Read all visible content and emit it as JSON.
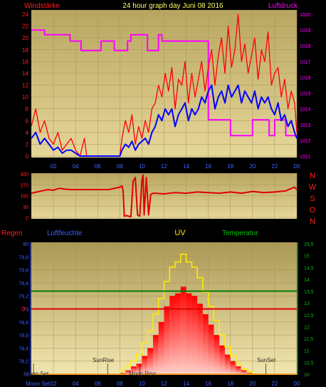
{
  "header": {
    "left_label": "Windstärke",
    "title": "24 hour graph day   Juni 08 2016",
    "right_label": "Luftdruck"
  },
  "colors": {
    "outer_bg": "#000000",
    "panel_bg": "#c8b46e",
    "grid": "#a89458",
    "wind_gust": "#ff0000",
    "wind_avg": "#0000ff",
    "pressure": "#ff00ff",
    "direction": "#e00000",
    "rain": "#e00000",
    "humidity": "#0000cc",
    "uv": "#ffee00",
    "temperature": "#007a00",
    "yellow_text": "#ffff66",
    "green_axis": "#00c000",
    "blue_axis": "#4060ff"
  },
  "bottom_header": {
    "rain_label": "Regen",
    "humidity_label": "Luftfeuchte",
    "uv_label": "UV",
    "temp_label": "Temperatur"
  },
  "compass_labels": [
    "N",
    "W",
    "S",
    "O",
    "N"
  ],
  "annotations": {
    "moon_set": "Moon Set",
    "sun_rise": "SunRise",
    "moon_rise": "Moon Rise",
    "sun_set": "SunSet",
    "moon_set_axis": "Moon Set"
  },
  "chart_data": [
    {
      "type": "line",
      "name": "wind-pressure",
      "x_ticks": [
        "02",
        "04",
        "06",
        "08",
        "10",
        "12",
        "14",
        "16",
        "18",
        "20",
        "22",
        "00"
      ],
      "x_range": [
        0,
        24
      ],
      "ylim_left": [
        0,
        24
      ],
      "yticks_left": [
        0,
        2,
        4,
        6,
        8,
        10,
        12,
        14,
        16,
        18,
        20,
        22,
        24
      ],
      "ylim_right": [
        1011,
        1020
      ],
      "yticks_right": [
        1011,
        1012,
        1013,
        1014,
        1015,
        1016,
        1017,
        1018,
        1019,
        1020
      ],
      "gust_x": [
        0,
        0.4,
        0.8,
        1.2,
        1.6,
        2.0,
        2.4,
        2.8,
        3.2,
        3.6,
        4.0,
        4.4,
        4.8,
        5.0,
        5.5,
        6.0,
        7.0,
        8.0,
        8.2,
        8.5,
        8.8,
        9.1,
        9.4,
        9.7,
        10.0,
        10.3,
        10.6,
        10.9,
        11.2,
        11.5,
        11.8,
        12.1,
        12.4,
        12.7,
        13.0,
        13.3,
        13.6,
        13.9,
        14.2,
        14.5,
        14.8,
        15.1,
        15.4,
        15.7,
        16.0,
        16.3,
        16.6,
        16.9,
        17.2,
        17.5,
        17.8,
        18.1,
        18.4,
        18.7,
        19.0,
        19.3,
        19.6,
        19.9,
        20.2,
        20.5,
        20.8,
        21.1,
        21.4,
        21.7,
        22.0,
        22.3,
        22.6,
        22.9,
        23.2,
        23.5,
        23.8,
        24.0
      ],
      "gust_y": [
        5,
        8,
        4,
        6,
        3,
        2,
        4,
        1,
        2,
        3,
        1,
        0,
        3,
        0,
        0,
        0,
        0,
        0,
        3,
        6,
        4,
        7,
        2,
        5,
        3,
        6,
        4,
        8,
        9,
        12,
        10,
        14,
        11,
        15,
        8,
        13,
        12,
        16,
        9,
        14,
        10,
        13,
        16,
        11,
        15,
        18,
        12,
        17,
        20,
        14,
        22,
        15,
        18,
        24,
        16,
        19,
        14,
        17,
        20,
        13,
        18,
        16,
        21,
        12,
        14,
        15,
        10,
        13,
        8,
        11,
        9,
        4
      ],
      "avg_x": [
        0,
        0.4,
        0.8,
        1.2,
        1.6,
        2.0,
        2.4,
        2.8,
        3.2,
        3.6,
        4.0,
        4.4,
        4.8,
        5.0,
        5.5,
        6.0,
        7.0,
        8.0,
        8.2,
        8.5,
        8.8,
        9.1,
        9.4,
        9.7,
        10.0,
        10.3,
        10.6,
        10.9,
        11.2,
        11.5,
        11.8,
        12.1,
        12.4,
        12.7,
        13.0,
        13.3,
        13.6,
        13.9,
        14.2,
        14.5,
        14.8,
        15.1,
        15.4,
        15.7,
        16.0,
        16.3,
        16.6,
        16.9,
        17.2,
        17.5,
        17.8,
        18.1,
        18.4,
        18.7,
        19.0,
        19.3,
        19.6,
        19.9,
        20.2,
        20.5,
        20.8,
        21.1,
        21.4,
        21.7,
        22.0,
        22.3,
        22.6,
        22.9,
        23.2,
        23.5,
        23.8,
        24.0
      ],
      "avg_y": [
        3,
        4,
        2,
        3,
        2,
        1,
        1.5,
        0.5,
        1,
        1,
        0.5,
        0,
        0,
        0,
        0,
        0,
        0,
        0,
        1,
        2,
        1.5,
        2.5,
        1,
        2,
        2.5,
        3,
        2,
        4,
        5,
        7,
        6,
        8,
        7,
        8,
        5,
        7,
        8,
        9,
        6,
        8,
        7,
        8,
        10,
        9,
        11,
        12,
        8,
        10,
        11,
        9,
        12,
        10,
        11,
        12,
        9,
        11,
        10,
        9,
        11,
        8,
        10,
        9,
        10,
        8,
        7,
        9,
        6,
        7,
        5,
        6,
        4,
        3
      ],
      "pressure_x": [
        0,
        1.2,
        1.2,
        3.5,
        3.5,
        4.5,
        4.5,
        6.3,
        6.3,
        7.5,
        7.5,
        8.7,
        8.7,
        9.0,
        9.0,
        10.5,
        10.5,
        11.5,
        11.5,
        11.8,
        11.8,
        16.0,
        16.0,
        18.0,
        18.0,
        20.0,
        20.0,
        21.5,
        21.5,
        22.0,
        22.0,
        23.0,
        23.0,
        24.0
      ],
      "pressure_y": [
        1019,
        1019,
        1018.7,
        1018.7,
        1018.3,
        1018.3,
        1017.7,
        1017.7,
        1018.3,
        1018.3,
        1017.7,
        1017.7,
        1018.3,
        1018.3,
        1018.7,
        1018.7,
        1017.7,
        1017.7,
        1018.7,
        1018.7,
        1018.3,
        1018.3,
        1013.3,
        1013.3,
        1012.3,
        1012.3,
        1013.3,
        1013.3,
        1012.3,
        1012.3,
        1013.3,
        1013.3,
        1012.3,
        1012.3
      ]
    },
    {
      "type": "line",
      "name": "wind-direction",
      "x_range": [
        0,
        24
      ],
      "ylim": [
        0,
        360
      ],
      "yticks": [
        0,
        90,
        180,
        270,
        360
      ],
      "x": [
        0,
        0.5,
        1,
        1.5,
        2,
        2.5,
        3,
        3.5,
        4,
        5,
        6,
        7,
        8,
        8.2,
        8.3,
        8.4,
        8.6,
        9,
        9.2,
        9.4,
        9.6,
        9.8,
        10,
        10.1,
        10.2,
        10.4,
        10.6,
        10.8,
        11,
        11.2,
        12,
        13,
        14,
        15,
        16,
        17,
        18,
        19,
        20,
        21,
        22,
        23,
        23.8,
        24
      ],
      "y": [
        200,
        210,
        220,
        230,
        225,
        240,
        235,
        230,
        230,
        230,
        230,
        230,
        250,
        260,
        220,
        10,
        15,
        5,
        300,
        330,
        20,
        10,
        310,
        350,
        20,
        330,
        20,
        190,
        200,
        200,
        195,
        205,
        200,
        210,
        205,
        200,
        210,
        200,
        215,
        205,
        210,
        220,
        250,
        230
      ]
    },
    {
      "type": "area",
      "name": "uv-humidity-rain-temp",
      "x_ticks": [
        "02",
        "04",
        "06",
        "08",
        "10",
        "12",
        "14",
        "16",
        "18",
        "20",
        "22",
        "00"
      ],
      "x_range": [
        0,
        24
      ],
      "humidity_ylim": [
        78,
        80
      ],
      "humidity_yticks": [
        "78",
        "78,2",
        "78,4",
        "78,6",
        "78,8",
        "79",
        "79,2",
        "79,4",
        "79,6",
        "79,8",
        "80"
      ],
      "temp_ylim": [
        10,
        15.5
      ],
      "temp_yticks": [
        "10",
        "10,5",
        "11",
        "11,5",
        "12",
        "12,5",
        "13",
        "13,5",
        "14",
        "14,5",
        "15",
        "15,5"
      ],
      "rain_value": 0,
      "temperature_value": 13.5,
      "uv_x": [
        8,
        8.5,
        9,
        9.5,
        10,
        10.5,
        11,
        11.5,
        12,
        12.5,
        13,
        13.5,
        14,
        14.5,
        15,
        15.5,
        16,
        16.5,
        17,
        17.5,
        18,
        18.5,
        19,
        19.5,
        20
      ],
      "uv_y": [
        0.1,
        0.3,
        0.6,
        0.8,
        1.4,
        2.0,
        3.0,
        4.0,
        5.2,
        6.0,
        6.2,
        6.7,
        6.2,
        6.0,
        5.4,
        4.6,
        3.8,
        3.0,
        2.2,
        1.5,
        1.0,
        0.6,
        0.3,
        0.1,
        0.0
      ],
      "uv_outline_y": [
        0.3,
        0.6,
        1.0,
        1.5,
        2.4,
        3.3,
        4.6,
        5.8,
        7.1,
        8.2,
        8.6,
        9.2,
        8.6,
        8.2,
        7.4,
        6.3,
        5.2,
        4.1,
        3.0,
        2.1,
        1.4,
        0.8,
        0.4,
        0.2,
        0.0
      ]
    }
  ]
}
